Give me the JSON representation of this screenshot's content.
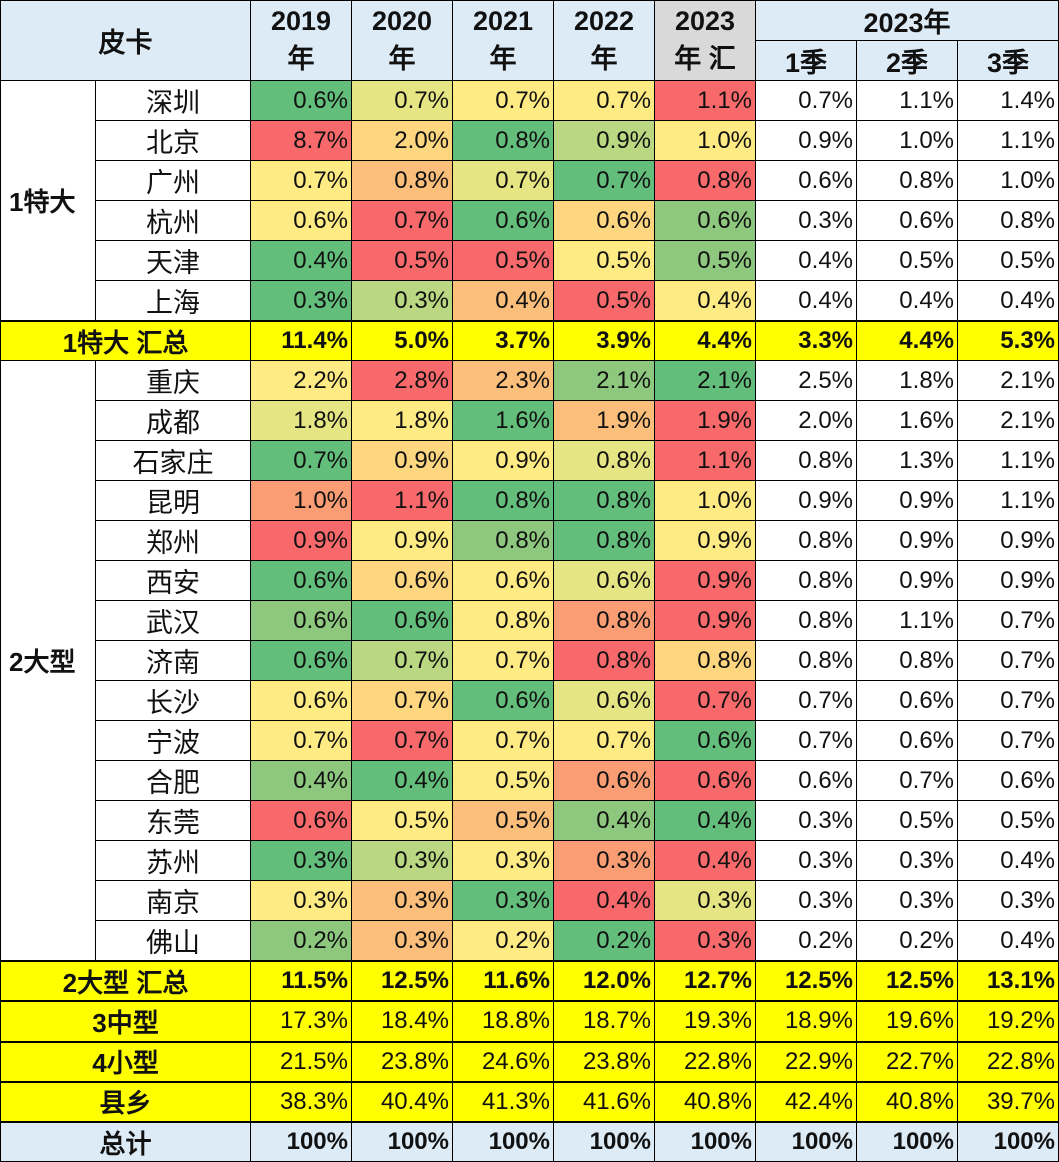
{
  "header": {
    "corner": "皮卡",
    "years": [
      {
        "top": "2019",
        "bottom": "年"
      },
      {
        "top": "2020",
        "bottom": "年"
      },
      {
        "top": "2021",
        "bottom": "年"
      },
      {
        "top": "2022",
        "bottom": "年"
      },
      {
        "top": "2023",
        "bottom": "年 汇"
      }
    ],
    "quarter_group": "2023年",
    "quarters": [
      "1季",
      "2季",
      "3季"
    ]
  },
  "palette": {
    "G": "#63BE7B",
    "L": "#8DC87E",
    "l": "#B9D881",
    "k": "#E6E583",
    "Y": "#FFEB84",
    "p": "#FED680",
    "O": "#FCBF7B",
    "o": "#FA9D75",
    "R": "#F8696B"
  },
  "groups": [
    {
      "label": "1特大",
      "rows": [
        {
          "city": "深圳",
          "values": [
            "0.6%",
            "0.7%",
            "0.7%",
            "0.7%",
            "1.1%",
            "0.7%",
            "1.1%",
            "1.4%"
          ],
          "colors": [
            "G",
            "k",
            "Y",
            "Y",
            "R"
          ]
        },
        {
          "city": "北京",
          "values": [
            "8.7%",
            "2.0%",
            "0.8%",
            "0.9%",
            "1.0%",
            "0.9%",
            "1.0%",
            "1.1%"
          ],
          "colors": [
            "R",
            "p",
            "G",
            "l",
            "Y"
          ]
        },
        {
          "city": "广州",
          "values": [
            "0.7%",
            "0.8%",
            "0.7%",
            "0.7%",
            "0.8%",
            "0.6%",
            "0.8%",
            "1.0%"
          ],
          "colors": [
            "Y",
            "O",
            "k",
            "G",
            "R"
          ]
        },
        {
          "city": "杭州",
          "values": [
            "0.6%",
            "0.7%",
            "0.6%",
            "0.6%",
            "0.6%",
            "0.3%",
            "0.6%",
            "0.8%"
          ],
          "colors": [
            "Y",
            "R",
            "G",
            "p",
            "L"
          ]
        },
        {
          "city": "天津",
          "values": [
            "0.4%",
            "0.5%",
            "0.5%",
            "0.5%",
            "0.5%",
            "0.4%",
            "0.5%",
            "0.5%"
          ],
          "colors": [
            "G",
            "R",
            "R",
            "Y",
            "L"
          ]
        },
        {
          "city": "上海",
          "values": [
            "0.3%",
            "0.3%",
            "0.4%",
            "0.5%",
            "0.4%",
            "0.4%",
            "0.4%",
            "0.4%"
          ],
          "colors": [
            "G",
            "l",
            "O",
            "R",
            "Y"
          ]
        }
      ],
      "summary": {
        "label": "1特大 汇总",
        "values": [
          "11.4%",
          "5.0%",
          "3.7%",
          "3.9%",
          "4.4%",
          "3.3%",
          "4.4%",
          "5.3%"
        ]
      }
    },
    {
      "label": "2大型",
      "rows": [
        {
          "city": "重庆",
          "values": [
            "2.2%",
            "2.8%",
            "2.3%",
            "2.1%",
            "2.1%",
            "2.5%",
            "1.8%",
            "2.1%"
          ],
          "colors": [
            "Y",
            "R",
            "O",
            "L",
            "G"
          ]
        },
        {
          "city": "成都",
          "values": [
            "1.8%",
            "1.8%",
            "1.6%",
            "1.9%",
            "1.9%",
            "2.0%",
            "1.6%",
            "2.1%"
          ],
          "colors": [
            "k",
            "Y",
            "G",
            "O",
            "R"
          ]
        },
        {
          "city": "石家庄",
          "values": [
            "0.7%",
            "0.9%",
            "0.9%",
            "0.8%",
            "1.1%",
            "0.8%",
            "1.3%",
            "1.1%"
          ],
          "colors": [
            "G",
            "p",
            "Y",
            "k",
            "R"
          ]
        },
        {
          "city": "昆明",
          "values": [
            "1.0%",
            "1.1%",
            "0.8%",
            "0.8%",
            "1.0%",
            "0.9%",
            "0.9%",
            "1.1%"
          ],
          "colors": [
            "o",
            "R",
            "G",
            "G",
            "Y"
          ]
        },
        {
          "city": "郑州",
          "values": [
            "0.9%",
            "0.9%",
            "0.8%",
            "0.8%",
            "0.9%",
            "0.8%",
            "0.9%",
            "0.9%"
          ],
          "colors": [
            "R",
            "Y",
            "L",
            "G",
            "Y"
          ]
        },
        {
          "city": "西安",
          "values": [
            "0.6%",
            "0.6%",
            "0.6%",
            "0.6%",
            "0.9%",
            "0.8%",
            "0.9%",
            "0.9%"
          ],
          "colors": [
            "G",
            "p",
            "Y",
            "k",
            "R"
          ]
        },
        {
          "city": "武汉",
          "values": [
            "0.6%",
            "0.6%",
            "0.8%",
            "0.8%",
            "0.9%",
            "0.8%",
            "1.1%",
            "0.7%"
          ],
          "colors": [
            "L",
            "G",
            "Y",
            "o",
            "R"
          ]
        },
        {
          "city": "济南",
          "values": [
            "0.6%",
            "0.7%",
            "0.7%",
            "0.8%",
            "0.8%",
            "0.8%",
            "0.8%",
            "0.7%"
          ],
          "colors": [
            "G",
            "l",
            "Y",
            "R",
            "p"
          ]
        },
        {
          "city": "长沙",
          "values": [
            "0.6%",
            "0.7%",
            "0.6%",
            "0.6%",
            "0.7%",
            "0.7%",
            "0.6%",
            "0.7%"
          ],
          "colors": [
            "Y",
            "p",
            "G",
            "k",
            "R"
          ]
        },
        {
          "city": "宁波",
          "values": [
            "0.7%",
            "0.7%",
            "0.7%",
            "0.7%",
            "0.6%",
            "0.7%",
            "0.6%",
            "0.7%"
          ],
          "colors": [
            "Y",
            "R",
            "Y",
            "Y",
            "G"
          ]
        },
        {
          "city": "合肥",
          "values": [
            "0.4%",
            "0.4%",
            "0.5%",
            "0.6%",
            "0.6%",
            "0.6%",
            "0.7%",
            "0.6%"
          ],
          "colors": [
            "L",
            "G",
            "Y",
            "o",
            "R"
          ]
        },
        {
          "city": "东莞",
          "values": [
            "0.6%",
            "0.5%",
            "0.5%",
            "0.4%",
            "0.4%",
            "0.3%",
            "0.5%",
            "0.5%"
          ],
          "colors": [
            "R",
            "Y",
            "O",
            "L",
            "G"
          ]
        },
        {
          "city": "苏州",
          "values": [
            "0.3%",
            "0.3%",
            "0.3%",
            "0.3%",
            "0.4%",
            "0.3%",
            "0.3%",
            "0.4%"
          ],
          "colors": [
            "G",
            "l",
            "Y",
            "o",
            "R"
          ]
        },
        {
          "city": "南京",
          "values": [
            "0.3%",
            "0.3%",
            "0.3%",
            "0.4%",
            "0.3%",
            "0.3%",
            "0.3%",
            "0.3%"
          ],
          "colors": [
            "Y",
            "O",
            "G",
            "R",
            "k"
          ]
        },
        {
          "city": "佛山",
          "values": [
            "0.2%",
            "0.3%",
            "0.2%",
            "0.2%",
            "0.3%",
            "0.2%",
            "0.2%",
            "0.4%"
          ],
          "colors": [
            "L",
            "O",
            "Y",
            "G",
            "R"
          ]
        }
      ],
      "summary": {
        "label": "2大型 汇总",
        "values": [
          "11.5%",
          "12.5%",
          "11.6%",
          "12.0%",
          "12.7%",
          "12.5%",
          "12.5%",
          "13.1%"
        ]
      }
    }
  ],
  "other_rows": [
    {
      "label": "3中型",
      "values": [
        "17.3%",
        "18.4%",
        "18.8%",
        "18.7%",
        "19.3%",
        "18.9%",
        "19.6%",
        "19.2%"
      ]
    },
    {
      "label": "4小型",
      "values": [
        "21.5%",
        "23.8%",
        "24.6%",
        "23.8%",
        "22.8%",
        "22.9%",
        "22.7%",
        "22.8%"
      ]
    },
    {
      "label": "县乡",
      "values": [
        "38.3%",
        "40.4%",
        "41.3%",
        "41.6%",
        "40.8%",
        "42.4%",
        "40.8%",
        "39.7%"
      ]
    }
  ],
  "total": {
    "label": "总计",
    "values": [
      "100%",
      "100%",
      "100%",
      "100%",
      "100%",
      "100%",
      "100%",
      "100%"
    ]
  }
}
